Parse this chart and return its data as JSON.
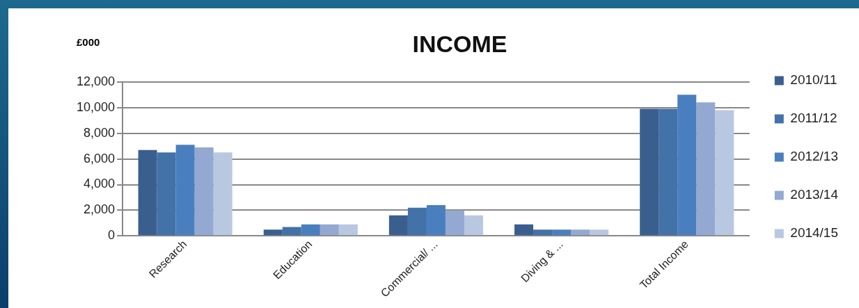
{
  "chart_data": {
    "type": "bar",
    "title": "INCOME",
    "ylabel": "£000",
    "categories": [
      "Research",
      "Education",
      "Commercial/ ...",
      "Diving & ...",
      "Total Income"
    ],
    "series": [
      {
        "name": "2010/11",
        "color": "#3a5f8f",
        "values": [
          6700,
          500,
          1600,
          900,
          9900
        ]
      },
      {
        "name": "2011/12",
        "color": "#4272a8",
        "values": [
          6500,
          700,
          2200,
          500,
          9900
        ]
      },
      {
        "name": "2012/13",
        "color": "#4a7fbf",
        "values": [
          7100,
          900,
          2400,
          500,
          11000
        ]
      },
      {
        "name": "2013/14",
        "color": "#93a9d1",
        "values": [
          6900,
          900,
          2000,
          500,
          10400
        ]
      },
      {
        "name": "2014/15",
        "color": "#b9c8e1",
        "values": [
          6500,
          900,
          1600,
          500,
          9800
        ]
      }
    ],
    "ylim": [
      0,
      12000
    ],
    "yticks": [
      0,
      {
        "value": 2000,
        "label": "2,000"
      },
      {
        "value": 4000,
        "label": "4,000"
      },
      {
        "value": 6000,
        "label": "6,000"
      },
      {
        "value": 8000,
        "label": "8,000"
      },
      {
        "value": 10000,
        "label": "10,000"
      },
      {
        "value": 12000,
        "label": "12,000"
      }
    ],
    "grid": "y",
    "legend": "right"
  }
}
